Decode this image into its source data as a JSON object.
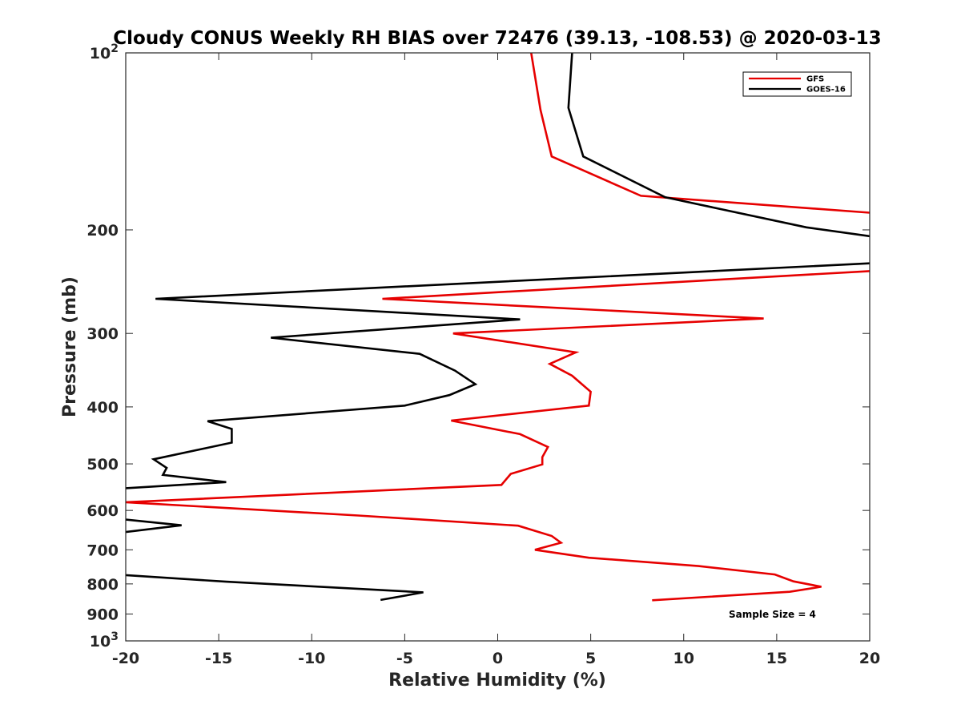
{
  "chart_data": {
    "type": "line",
    "title": "Cloudy CONUS Weekly RH BIAS over 72476 (39.13, -108.53) @ 2020-03-13",
    "xlabel": "Relative Humidity (%)",
    "ylabel": "Pressure (mb)",
    "xlim": [
      -20,
      20
    ],
    "ylim": [
      100,
      1000
    ],
    "y_scale": "log",
    "y_reversed": true,
    "grid": false,
    "legend_position": "top-right",
    "x_ticks": [
      "-20",
      "-15",
      "-10",
      "-5",
      "0",
      "5",
      "10",
      "15",
      "20"
    ],
    "y_ticks": [
      {
        "value": 100,
        "base": "10",
        "exp": "2"
      },
      {
        "value": 200,
        "label": "200"
      },
      {
        "value": 300,
        "label": "300"
      },
      {
        "value": 400,
        "label": "400"
      },
      {
        "value": 500,
        "label": "500"
      },
      {
        "value": 600,
        "label": "600"
      },
      {
        "value": 700,
        "label": "700"
      },
      {
        "value": 800,
        "label": "800"
      },
      {
        "value": 900,
        "label": "900"
      },
      {
        "value": 1000,
        "base": "10",
        "exp": "3"
      }
    ],
    "annotation": "Sample Size = 4",
    "series": [
      {
        "name": "GFS",
        "color": "#e60000",
        "points": [
          [
            1.8,
            100
          ],
          [
            2.3,
            125
          ],
          [
            2.9,
            150
          ],
          [
            7.7,
            175
          ],
          [
            20.0,
            187
          ],
          null,
          [
            20.0,
            235
          ],
          [
            -6.2,
            262
          ],
          [
            14.3,
            283
          ],
          [
            -2.4,
            300
          ],
          [
            4.2,
            323
          ],
          [
            2.8,
            338
          ],
          [
            4.0,
            354
          ],
          [
            5.0,
            377
          ],
          [
            4.9,
            398
          ],
          [
            -2.5,
            422
          ],
          [
            1.2,
            445
          ],
          [
            2.7,
            468
          ],
          [
            2.4,
            487
          ],
          [
            2.4,
            501
          ],
          [
            0.7,
            520
          ],
          [
            0.2,
            543
          ],
          [
            -20.0,
            581
          ],
          [
            -7.5,
            612
          ],
          [
            1.1,
            637
          ],
          [
            2.9,
            663
          ],
          [
            3.4,
            681
          ],
          [
            2.0,
            700
          ],
          [
            4.9,
            722
          ],
          [
            10.8,
            746
          ],
          [
            14.9,
            771
          ],
          [
            15.9,
            792
          ],
          [
            17.4,
            809
          ],
          [
            15.7,
            825
          ],
          [
            8.3,
            853
          ]
        ]
      },
      {
        "name": "GOES-16",
        "color": "#000000",
        "points": [
          [
            4.0,
            100
          ],
          [
            3.8,
            124
          ],
          [
            4.6,
            150
          ],
          [
            9.0,
            176
          ],
          [
            16.6,
            198
          ],
          [
            20.0,
            205
          ],
          null,
          [
            20.0,
            228
          ],
          [
            -18.4,
            262
          ],
          [
            1.2,
            284
          ],
          [
            -12.2,
            305
          ],
          [
            -4.2,
            325
          ],
          [
            -2.3,
            347
          ],
          [
            -1.2,
            366
          ],
          [
            -2.6,
            382
          ],
          [
            -5.0,
            398
          ],
          [
            -15.6,
            423
          ],
          [
            -14.3,
            436
          ],
          [
            -14.3,
            460
          ],
          [
            -18.5,
            491
          ],
          [
            -17.8,
            508
          ],
          [
            -18.0,
            522
          ],
          [
            -14.6,
            537
          ],
          [
            -20.0,
            550
          ],
          null,
          [
            -20.0,
            622
          ],
          [
            -17.0,
            636
          ],
          [
            -20.0,
            653
          ],
          null,
          [
            -20.0,
            773
          ],
          [
            -14.6,
            793
          ],
          [
            -4.0,
            827
          ],
          [
            -6.3,
            852
          ]
        ]
      }
    ]
  }
}
